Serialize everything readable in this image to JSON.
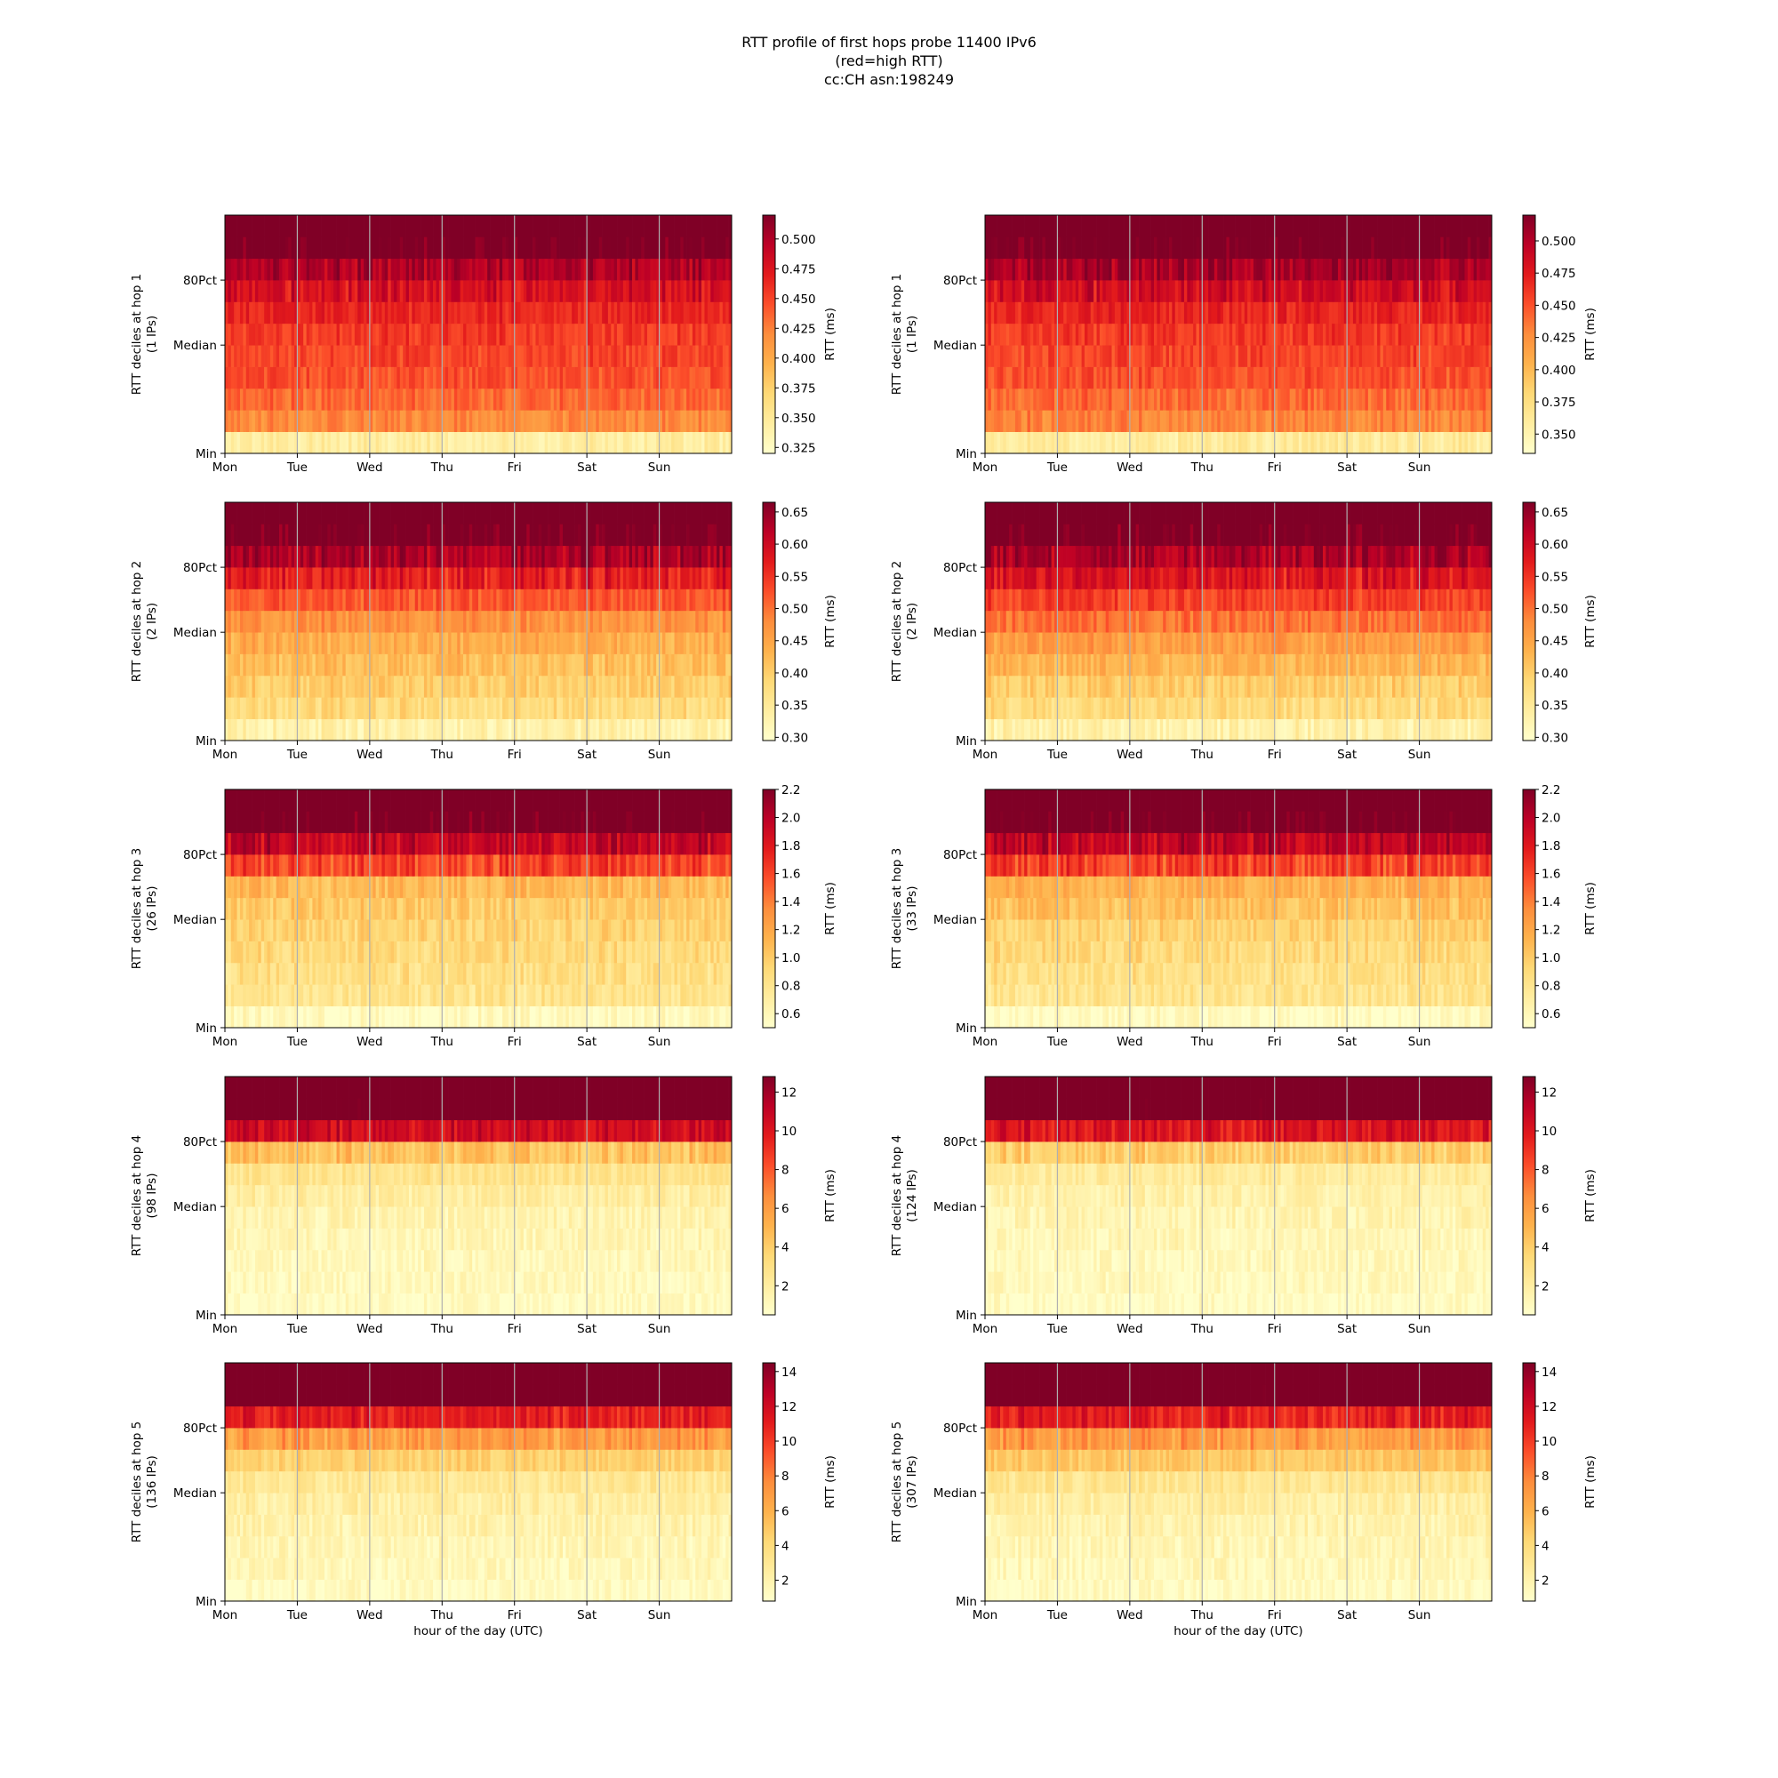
{
  "figure": {
    "title_lines": [
      "RTT profile of first hops probe 11400 IPv6",
      "(red=high RTT)",
      "cc:CH asn:198249"
    ]
  },
  "colormap": [
    "#ffffcc",
    "#ffeda0",
    "#fed976",
    "#feb24c",
    "#fd8d3c",
    "#fc4e2a",
    "#e31a1c",
    "#bd0026",
    "#800026"
  ],
  "chart_data": [
    {
      "type": "heatmap",
      "hop": 1,
      "ylabel": "RTT deciles at hop 1",
      "ips": "(1 IPs)",
      "xticks": [
        "Mon",
        "Tue",
        "Wed",
        "Thu",
        "Fri",
        "Sat",
        "Sun"
      ],
      "xlabel": "",
      "yticks": [
        "Min",
        "Median",
        "80Pct"
      ],
      "colorbar_label": "RTT (ms)",
      "colorbar_ticks": [
        "0.325",
        "0.350",
        "0.375",
        "0.400",
        "0.425",
        "0.450",
        "0.475",
        "0.500"
      ],
      "vmin": 0.32,
      "vmax": 0.52,
      "decile_rtt_ms": [
        0.345,
        0.42,
        0.435,
        0.445,
        0.45,
        0.455,
        0.465,
        0.48,
        0.5,
        0.53
      ],
      "noise": 0.012
    },
    {
      "type": "heatmap",
      "hop": 1,
      "ylabel": "RTT deciles at hop 1",
      "ips": "(1 IPs)",
      "xticks": [
        "Mon",
        "Tue",
        "Wed",
        "Thu",
        "Fri",
        "Sat",
        "Sun"
      ],
      "xlabel": "",
      "yticks": [
        "Min",
        "Median",
        "80Pct"
      ],
      "colorbar_label": "RTT (ms)",
      "colorbar_ticks": [
        "0.350",
        "0.375",
        "0.400",
        "0.425",
        "0.450",
        "0.475",
        "0.500"
      ],
      "vmin": 0.335,
      "vmax": 0.52,
      "decile_rtt_ms": [
        0.36,
        0.43,
        0.44,
        0.45,
        0.455,
        0.46,
        0.47,
        0.485,
        0.505,
        0.53
      ],
      "noise": 0.012
    },
    {
      "type": "heatmap",
      "hop": 2,
      "ylabel": "RTT deciles at hop 2",
      "ips": "(2 IPs)",
      "xticks": [
        "Mon",
        "Tue",
        "Wed",
        "Thu",
        "Fri",
        "Sat",
        "Sun"
      ],
      "xlabel": "",
      "yticks": [
        "Min",
        "Median",
        "80Pct"
      ],
      "colorbar_label": "RTT (ms)",
      "colorbar_ticks": [
        "0.30",
        "0.35",
        "0.40",
        "0.45",
        "0.50",
        "0.55",
        "0.60",
        "0.65"
      ],
      "vmin": 0.295,
      "vmax": 0.665,
      "decile_rtt_ms": [
        0.33,
        0.38,
        0.4,
        0.42,
        0.44,
        0.47,
        0.52,
        0.57,
        0.63,
        0.68
      ],
      "noise": 0.025
    },
    {
      "type": "heatmap",
      "hop": 2,
      "ylabel": "RTT deciles at hop 2",
      "ips": "(2 IPs)",
      "xticks": [
        "Mon",
        "Tue",
        "Wed",
        "Thu",
        "Fri",
        "Sat",
        "Sun"
      ],
      "xlabel": "",
      "yticks": [
        "Min",
        "Median",
        "80Pct"
      ],
      "colorbar_label": "RTT (ms)",
      "colorbar_ticks": [
        "0.30",
        "0.35",
        "0.40",
        "0.45",
        "0.50",
        "0.55",
        "0.60",
        "0.65"
      ],
      "vmin": 0.295,
      "vmax": 0.665,
      "decile_rtt_ms": [
        0.33,
        0.38,
        0.4,
        0.43,
        0.46,
        0.5,
        0.54,
        0.58,
        0.63,
        0.68
      ],
      "noise": 0.025
    },
    {
      "type": "heatmap",
      "hop": 3,
      "ylabel": "RTT deciles at hop 3",
      "ips": "(26 IPs)",
      "xticks": [
        "Mon",
        "Tue",
        "Wed",
        "Thu",
        "Fri",
        "Sat",
        "Sun"
      ],
      "xlabel": "",
      "yticks": [
        "Min",
        "Median",
        "80Pct"
      ],
      "colorbar_label": "RTT (ms)",
      "colorbar_ticks": [
        "0.6",
        "0.8",
        "1.0",
        "1.2",
        "1.4",
        "1.6",
        "1.8",
        "2.0",
        "2.2"
      ],
      "vmin": 0.5,
      "vmax": 2.2,
      "decile_rtt_ms": [
        0.55,
        0.8,
        0.85,
        0.9,
        0.95,
        1.0,
        1.1,
        1.6,
        1.95,
        2.3
      ],
      "noise": 0.12
    },
    {
      "type": "heatmap",
      "hop": 3,
      "ylabel": "RTT deciles at hop 3",
      "ips": "(33 IPs)",
      "xticks": [
        "Mon",
        "Tue",
        "Wed",
        "Thu",
        "Fri",
        "Sat",
        "Sun"
      ],
      "xlabel": "",
      "yticks": [
        "Min",
        "Median",
        "80Pct"
      ],
      "colorbar_label": "RTT (ms)",
      "colorbar_ticks": [
        "0.6",
        "0.8",
        "1.0",
        "1.2",
        "1.4",
        "1.6",
        "1.8",
        "2.0",
        "2.2"
      ],
      "vmin": 0.5,
      "vmax": 2.2,
      "decile_rtt_ms": [
        0.55,
        0.8,
        0.85,
        0.9,
        0.95,
        1.05,
        1.15,
        1.6,
        1.95,
        2.3
      ],
      "noise": 0.12
    },
    {
      "type": "heatmap",
      "hop": 4,
      "ylabel": "RTT deciles at hop 4",
      "ips": "(98 IPs)",
      "xticks": [
        "Mon",
        "Tue",
        "Wed",
        "Thu",
        "Fri",
        "Sat",
        "Sun"
      ],
      "xlabel": "",
      "yticks": [
        "Min",
        "Median",
        "80Pct"
      ],
      "colorbar_label": "RTT (ms)",
      "colorbar_ticks": [
        "2",
        "4",
        "6",
        "8",
        "10",
        "12"
      ],
      "vmin": 0.5,
      "vmax": 12.8,
      "decile_rtt_ms": [
        0.8,
        1.0,
        1.1,
        1.3,
        1.5,
        2.0,
        2.8,
        4.5,
        10.5,
        14.0
      ],
      "noise": 0.7
    },
    {
      "type": "heatmap",
      "hop": 4,
      "ylabel": "RTT deciles at hop 4",
      "ips": "(124 IPs)",
      "xticks": [
        "Mon",
        "Tue",
        "Wed",
        "Thu",
        "Fri",
        "Sat",
        "Sun"
      ],
      "xlabel": "",
      "yticks": [
        "Min",
        "Median",
        "80Pct"
      ],
      "colorbar_label": "RTT (ms)",
      "colorbar_ticks": [
        "2",
        "4",
        "6",
        "8",
        "10",
        "12"
      ],
      "vmin": 0.5,
      "vmax": 12.8,
      "decile_rtt_ms": [
        0.8,
        1.0,
        1.1,
        1.2,
        1.4,
        1.7,
        2.2,
        4.0,
        10.0,
        14.0
      ],
      "noise": 0.7
    },
    {
      "type": "heatmap",
      "hop": 5,
      "ylabel": "RTT deciles at hop 5",
      "ips": "(136 IPs)",
      "xticks": [
        "Mon",
        "Tue",
        "Wed",
        "Thu",
        "Fri",
        "Sat",
        "Sun"
      ],
      "xlabel": "hour of the day (UTC)",
      "yticks": [
        "Min",
        "Median",
        "80Pct"
      ],
      "colorbar_label": "RTT (ms)",
      "colorbar_ticks": [
        "2",
        "4",
        "6",
        "8",
        "10",
        "12",
        "14"
      ],
      "vmin": 0.8,
      "vmax": 14.5,
      "decile_rtt_ms": [
        1.2,
        1.5,
        1.7,
        2.0,
        2.4,
        3.0,
        4.5,
        7.0,
        11.0,
        16.0
      ],
      "noise": 0.8
    },
    {
      "type": "heatmap",
      "hop": 5,
      "ylabel": "RTT deciles at hop 5",
      "ips": "(307 IPs)",
      "xticks": [
        "Mon",
        "Tue",
        "Wed",
        "Thu",
        "Fri",
        "Sat",
        "Sun"
      ],
      "xlabel": "hour of the day (UTC)",
      "yticks": [
        "Min",
        "Median",
        "80Pct"
      ],
      "colorbar_label": "RTT (ms)",
      "colorbar_ticks": [
        "2",
        "4",
        "6",
        "8",
        "10",
        "12",
        "14"
      ],
      "vmin": 0.8,
      "vmax": 14.5,
      "decile_rtt_ms": [
        1.2,
        1.5,
        1.7,
        2.0,
        2.4,
        3.2,
        5.0,
        7.0,
        11.0,
        16.0
      ],
      "noise": 0.8
    }
  ]
}
